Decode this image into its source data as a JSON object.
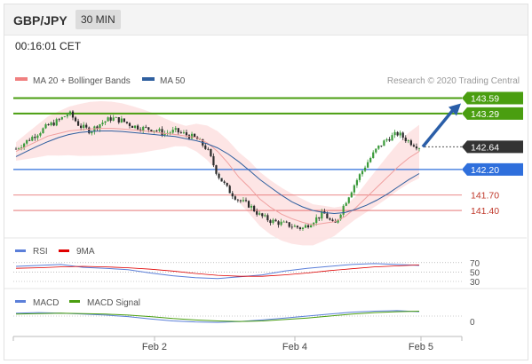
{
  "header": {
    "symbol": "GBP/JPY",
    "timeframe": "30 MIN"
  },
  "timestamp": "00:16:01 CET",
  "legend": {
    "ma20": "MA 20 + Bollinger Bands",
    "ma50": "MA 50",
    "credit": "Research © 2020 Trading Central",
    "rsi": "RSI",
    "rsi_ma": "9MA",
    "macd": "MACD",
    "macd_signal": "MACD Signal"
  },
  "colors": {
    "resistance": "#4a9e10",
    "current": "#333333",
    "pivot": "#2f6fdc",
    "support": "#e36060",
    "ma50": "#2f5f9f",
    "ma20": "#f0a0a0",
    "band_fill": "#fde2e2",
    "candle_up": "#3a9a3a",
    "candle_down": "#2a2a2a",
    "arrow": "#2a5ea8"
  },
  "chart_data": [
    {
      "type": "candlestick",
      "title": "GBP/JPY",
      "timeframe": "30 MIN",
      "x_ticks": [
        "Feb 2",
        "Feb 4",
        "Feb 5"
      ],
      "price_levels": [
        {
          "value": 143.59,
          "label": "143.59",
          "kind": "resistance"
        },
        {
          "value": 143.29,
          "label": "143.29",
          "kind": "resistance"
        },
        {
          "value": 142.64,
          "label": "142.64",
          "kind": "current"
        },
        {
          "value": 142.2,
          "label": "142.20",
          "kind": "pivot"
        },
        {
          "value": 141.7,
          "label": "141.70",
          "kind": "support"
        },
        {
          "value": 141.4,
          "label": "141.40",
          "kind": "support"
        }
      ],
      "price_series": [
        142.6,
        142.75,
        142.9,
        143.05,
        143.15,
        143.3,
        143.05,
        142.95,
        143.1,
        143.2,
        143.15,
        143.05,
        143.0,
        142.98,
        142.9,
        142.95,
        142.88,
        142.8,
        142.6,
        142.1,
        141.8,
        141.6,
        141.5,
        141.3,
        141.2,
        141.15,
        141.1,
        141.05,
        141.2,
        141.35,
        141.1,
        141.55,
        141.95,
        142.3,
        142.6,
        142.8,
        142.9,
        142.75,
        142.64
      ],
      "ma20_series": [
        142.55,
        142.65,
        142.75,
        142.85,
        142.9,
        142.95,
        142.97,
        142.99,
        143.0,
        143.0,
        142.99,
        142.97,
        142.95,
        142.93,
        142.9,
        142.88,
        142.85,
        142.82,
        142.72,
        142.55,
        142.32,
        142.05,
        141.85,
        141.62,
        141.46,
        141.33,
        141.24,
        141.17,
        141.12,
        141.15,
        141.18,
        141.28,
        141.45,
        141.65,
        141.85,
        142.05,
        142.25,
        142.42,
        142.55
      ],
      "ma50_series": [
        142.45,
        142.55,
        142.65,
        142.74,
        142.82,
        142.88,
        142.92,
        142.94,
        142.95,
        142.95,
        142.94,
        142.92,
        142.9,
        142.88,
        142.86,
        142.84,
        142.8,
        142.76,
        142.7,
        142.62,
        142.5,
        142.35,
        142.18,
        142.0,
        141.85,
        141.7,
        141.57,
        141.47,
        141.4,
        141.36,
        141.34,
        141.36,
        141.42,
        141.5,
        141.6,
        141.72,
        141.86,
        142.0,
        142.12
      ],
      "projection": {
        "from": 142.64,
        "to": 143.59
      }
    },
    {
      "type": "line",
      "title": "RSI",
      "series": [
        {
          "name": "RSI",
          "values": [
            62,
            64,
            66,
            60,
            58,
            55,
            48,
            42,
            38,
            36,
            40,
            44,
            52,
            58,
            62,
            66,
            68,
            66,
            64
          ]
        },
        {
          "name": "9MA",
          "values": [
            58,
            59,
            61,
            62,
            61,
            59,
            56,
            52,
            47,
            43,
            41,
            41,
            44,
            48,
            53,
            57,
            61,
            63,
            65
          ]
        }
      ],
      "levels": [
        70,
        50,
        30
      ]
    },
    {
      "type": "line",
      "title": "MACD",
      "series": [
        {
          "name": "MACD",
          "values": [
            0.06,
            0.07,
            0.06,
            0.04,
            0.02,
            -0.01,
            -0.06,
            -0.1,
            -0.12,
            -0.13,
            -0.11,
            -0.08,
            -0.04,
            0.0,
            0.04,
            0.08,
            0.1,
            0.11,
            0.09
          ]
        },
        {
          "name": "MACD Signal",
          "values": [
            0.04,
            0.05,
            0.06,
            0.05,
            0.04,
            0.02,
            -0.01,
            -0.05,
            -0.08,
            -0.1,
            -0.11,
            -0.1,
            -0.07,
            -0.04,
            0.0,
            0.04,
            0.07,
            0.09,
            0.1
          ]
        }
      ],
      "levels": [
        0
      ]
    }
  ]
}
